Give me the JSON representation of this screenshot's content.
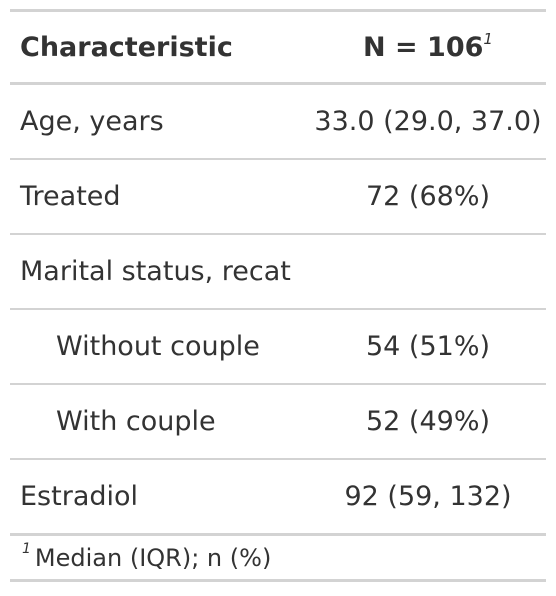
{
  "table": {
    "header": {
      "characteristic": "Characteristic",
      "n_label": "N = 106",
      "n_marker": "1"
    },
    "rows": [
      {
        "label": "Age, years",
        "value": "33.0 (29.0, 37.0)",
        "indent": false
      },
      {
        "label": "Treated",
        "value": "72 (68%)",
        "indent": false
      },
      {
        "label": "Marital status, recat",
        "value": "",
        "indent": false
      },
      {
        "label": "Without couple",
        "value": "54 (51%)",
        "indent": true
      },
      {
        "label": "With couple",
        "value": "52 (49%)",
        "indent": true
      },
      {
        "label": "Estradiol",
        "value": "92 (59, 132)",
        "indent": false
      }
    ],
    "footnote": {
      "marker": "1",
      "text": "Median (IQR); n (%)"
    }
  }
}
